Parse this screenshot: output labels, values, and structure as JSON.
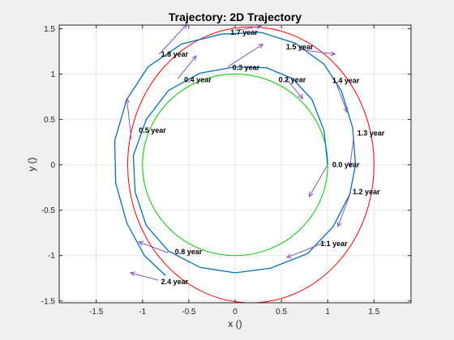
{
  "chart_data": {
    "type": "line",
    "title": "Trajectory: 2D Trajectory",
    "xlabel": "x ()",
    "ylabel": "y ()",
    "xlim": [
      -1.9,
      1.9
    ],
    "ylim": [
      -1.52,
      1.54
    ],
    "xticks": [
      -1.5,
      -1,
      -0.5,
      0,
      0.5,
      1,
      1.5
    ],
    "xtick_labels": [
      "-1.5",
      "-1",
      "-0.5",
      "0",
      "0.5",
      "1",
      "1.5"
    ],
    "yticks": [
      -1.5,
      -1,
      -0.5,
      0,
      0.5,
      1,
      1.5
    ],
    "ytick_labels": [
      "-1.5",
      "-1",
      "-0.5",
      "0",
      "0.5",
      "1",
      "1.5"
    ],
    "grid": true,
    "series": [
      {
        "color": "#00cc00",
        "type": "circle",
        "center": [
          0,
          0
        ],
        "radius": 1.0
      },
      {
        "color": "#ff0000",
        "type": "ellipse",
        "center": [
          0.17,
          0
        ],
        "rx": 1.33,
        "ry": 1.52
      },
      {
        "color": "#0072bd",
        "type": "spiral",
        "points": [
          [
            1.0,
            0.0
          ],
          [
            0.96,
            0.38
          ],
          [
            0.83,
            0.72
          ],
          [
            0.62,
            0.95
          ],
          [
            0.34,
            1.07
          ],
          [
            0.0,
            1.08
          ],
          [
            -0.38,
            1.01
          ],
          [
            -0.72,
            0.82
          ],
          [
            -0.96,
            0.5
          ],
          [
            -1.1,
            0.1
          ],
          [
            -1.08,
            -0.3
          ],
          [
            -0.96,
            -0.67
          ],
          [
            -0.72,
            -0.95
          ],
          [
            -0.38,
            -1.13
          ],
          [
            0.0,
            -1.19
          ],
          [
            0.38,
            -1.14
          ],
          [
            0.78,
            -0.98
          ],
          [
            1.06,
            -0.68
          ],
          [
            1.24,
            -0.32
          ],
          [
            1.3,
            0.0
          ],
          [
            1.27,
            0.41
          ],
          [
            1.15,
            0.81
          ],
          [
            0.96,
            1.11
          ],
          [
            0.65,
            1.34
          ],
          [
            0.28,
            1.46
          ],
          [
            -0.15,
            1.44
          ],
          [
            -0.58,
            1.33
          ],
          [
            -0.94,
            1.08
          ],
          [
            -1.17,
            0.72
          ],
          [
            -1.3,
            0.27
          ],
          [
            -1.29,
            -0.2
          ],
          [
            -1.17,
            -0.64
          ],
          [
            -0.98,
            -1.0
          ],
          [
            -0.75,
            -1.22
          ]
        ]
      }
    ],
    "annotations": [
      {
        "label": "0.0 year",
        "x": 1.05,
        "y": 0.0
      },
      {
        "label": "0.2 year",
        "x": 0.47,
        "y": 0.94
      },
      {
        "label": "0.3 year",
        "x": -0.03,
        "y": 1.07
      },
      {
        "label": "0.4 year",
        "x": -0.55,
        "y": 0.94
      },
      {
        "label": "0.5 year",
        "x": -1.04,
        "y": 0.38
      },
      {
        "label": "0.8 year",
        "x": -0.65,
        "y": -0.96
      },
      {
        "label": "1.1 year",
        "x": 0.92,
        "y": -0.87
      },
      {
        "label": "1.2 year",
        "x": 1.27,
        "y": -0.3
      },
      {
        "label": "1.3 year",
        "x": 1.32,
        "y": 0.35
      },
      {
        "label": "1.4 year",
        "x": 1.05,
        "y": 0.93
      },
      {
        "label": "1.5 year",
        "x": 0.55,
        "y": 1.3
      },
      {
        "label": "1.7 year",
        "x": -0.05,
        "y": 1.46
      },
      {
        "label": "1.8 year",
        "x": -0.8,
        "y": 1.22
      },
      {
        "label": "2.4 year",
        "x": -0.8,
        "y": -1.29
      }
    ],
    "arrows": [
      {
        "x": 1.0,
        "y": 0.0,
        "dx": -0.2,
        "dy": -0.35
      },
      {
        "x": 0.55,
        "y": 0.95,
        "dx": 0.18,
        "dy": -0.22
      },
      {
        "x": -0.08,
        "y": 1.08,
        "dx": 0.38,
        "dy": 0.25
      },
      {
        "x": -0.62,
        "y": 0.95,
        "dx": 0.2,
        "dy": 0.25
      },
      {
        "x": -1.12,
        "y": 0.28,
        "dx": -0.05,
        "dy": 0.45
      },
      {
        "x": -0.72,
        "y": -0.97,
        "dx": -0.32,
        "dy": 0.12
      },
      {
        "x": 0.98,
        "y": -0.85,
        "dx": -0.42,
        "dy": -0.17
      },
      {
        "x": 1.25,
        "y": -0.3,
        "dx": -0.14,
        "dy": -0.38
      },
      {
        "x": 1.28,
        "y": 0.3,
        "dx": -0.04,
        "dy": -0.32
      },
      {
        "x": 1.08,
        "y": 0.93,
        "dx": 0.13,
        "dy": -0.35
      },
      {
        "x": 0.7,
        "y": 1.27,
        "dx": 0.38,
        "dy": -0.05
      },
      {
        "x": 0.0,
        "y": 1.48,
        "dx": 0.28,
        "dy": 0.05
      },
      {
        "x": -0.82,
        "y": 1.22,
        "dx": 0.3,
        "dy": 0.33
      },
      {
        "x": -0.83,
        "y": -1.27,
        "dx": -0.3,
        "dy": 0.08
      }
    ],
    "arrow_color": "#8855bb"
  }
}
